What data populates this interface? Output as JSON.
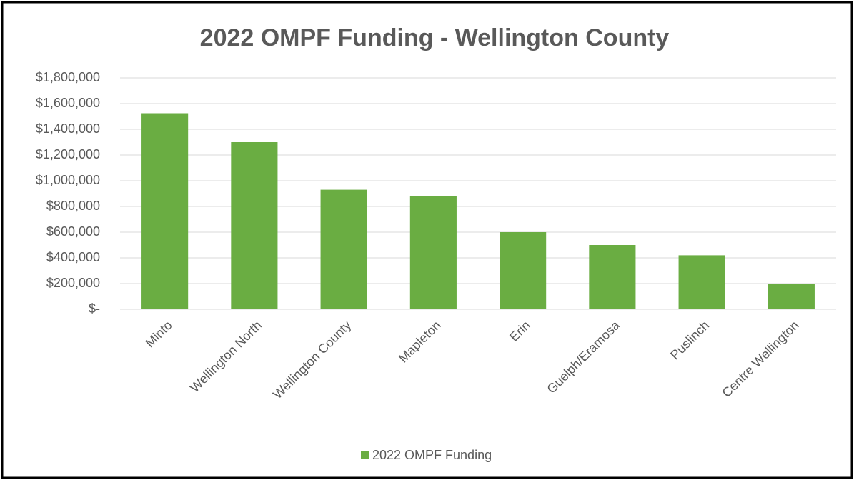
{
  "chart_data": {
    "type": "bar",
    "title": "2022 OMPF Funding - Wellington County",
    "categories": [
      "Minto",
      "Wellington North",
      "Wellington County",
      "Mapleton",
      "Erin",
      "Guelph/Eramosa",
      "Puslinch",
      "Centre Wellington"
    ],
    "series": [
      {
        "name": "2022 OMPF Funding",
        "color": "#6aad42",
        "values": [
          1525000,
          1300000,
          930000,
          880000,
          600000,
          500000,
          420000,
          200000
        ]
      }
    ],
    "ylim": [
      0,
      1800000
    ],
    "yticks": [
      {
        "value": 0,
        "label": "$-"
      },
      {
        "value": 200000,
        "label": "$200,000"
      },
      {
        "value": 400000,
        "label": "$400,000"
      },
      {
        "value": 600000,
        "label": "$600,000"
      },
      {
        "value": 800000,
        "label": "$800,000"
      },
      {
        "value": 1000000,
        "label": "$1,000,000"
      },
      {
        "value": 1200000,
        "label": "$1,200,000"
      },
      {
        "value": 1400000,
        "label": "$1,400,000"
      },
      {
        "value": 1600000,
        "label": "$1,600,000"
      },
      {
        "value": 1800000,
        "label": "$1,800,000"
      }
    ],
    "grid": true,
    "legend": "bottom"
  }
}
